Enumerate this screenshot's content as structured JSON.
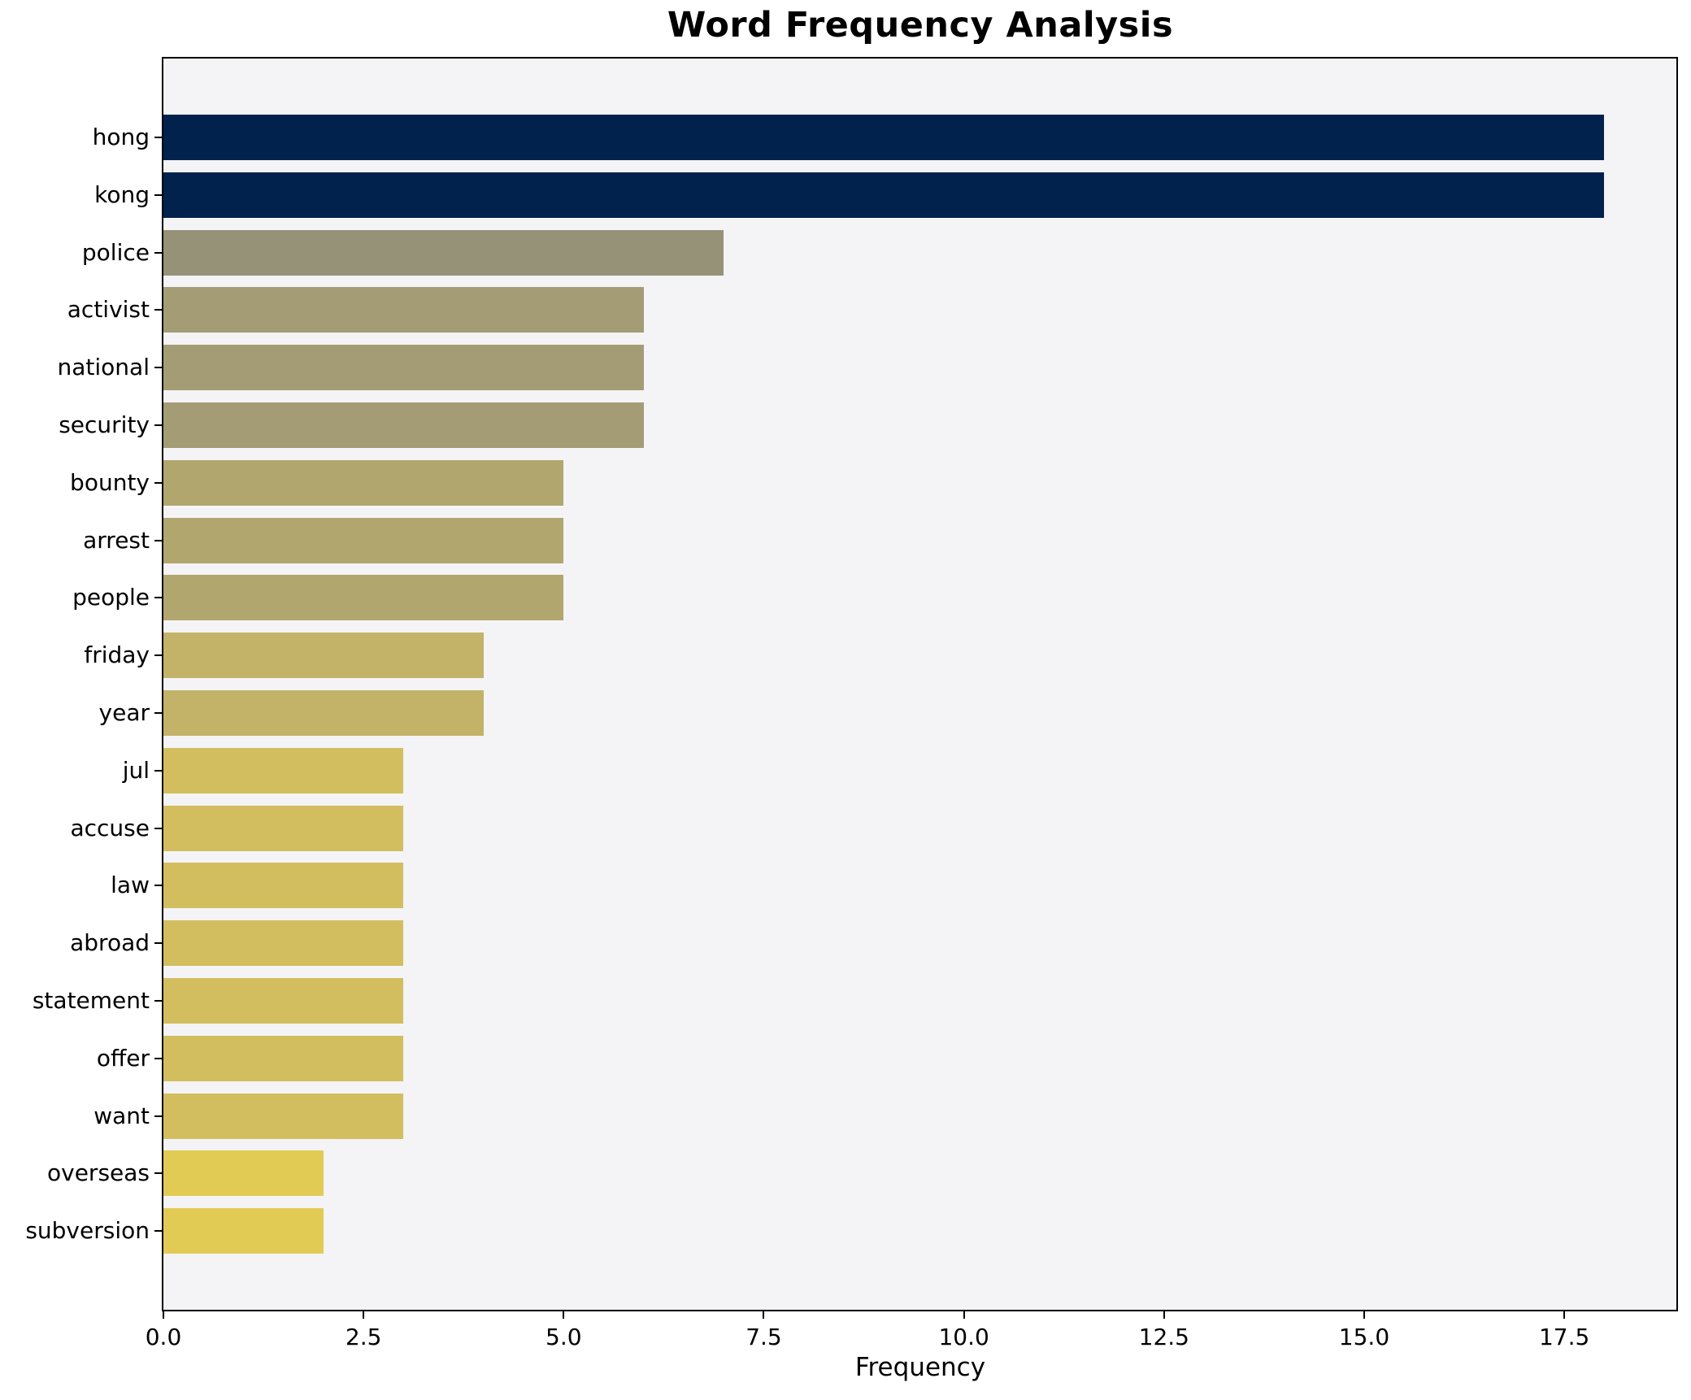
{
  "chart_data": {
    "type": "bar",
    "orientation": "horizontal",
    "title": "Word Frequency Analysis",
    "xlabel": "Frequency",
    "ylabel": "",
    "categories": [
      "hong",
      "kong",
      "police",
      "activist",
      "national",
      "security",
      "bounty",
      "arrest",
      "people",
      "friday",
      "year",
      "jul",
      "accuse",
      "law",
      "abroad",
      "statement",
      "offer",
      "want",
      "overseas",
      "subversion"
    ],
    "values": [
      18,
      18,
      7,
      6,
      6,
      6,
      5,
      5,
      5,
      4,
      4,
      3,
      3,
      3,
      3,
      3,
      3,
      3,
      2,
      2
    ],
    "bar_colors": [
      "#02224e",
      "#02224e",
      "#969278",
      "#a49c74",
      "#a49c74",
      "#a49c74",
      "#b2a66f",
      "#b2a66f",
      "#b2a66f",
      "#c3b368",
      "#c3b368",
      "#d2be5f",
      "#d2be5f",
      "#d2be5f",
      "#d2be5f",
      "#d2be5f",
      "#d2be5f",
      "#d2be5f",
      "#e2cb55",
      "#e2cb55"
    ],
    "xlim": [
      0,
      18.9
    ],
    "xticks": [
      0,
      2.5,
      5,
      7.5,
      10,
      12.5,
      15,
      17.5
    ],
    "xtick_labels": [
      "0.0",
      "2.5",
      "5.0",
      "7.5",
      "10.0",
      "12.5",
      "15.0",
      "17.5"
    ],
    "grid": false,
    "legend_position": "none",
    "plot_bg": "#f4f4f6",
    "fig_bg": "#ffffff",
    "spine_color": "#000000",
    "text_color": "#000000"
  }
}
